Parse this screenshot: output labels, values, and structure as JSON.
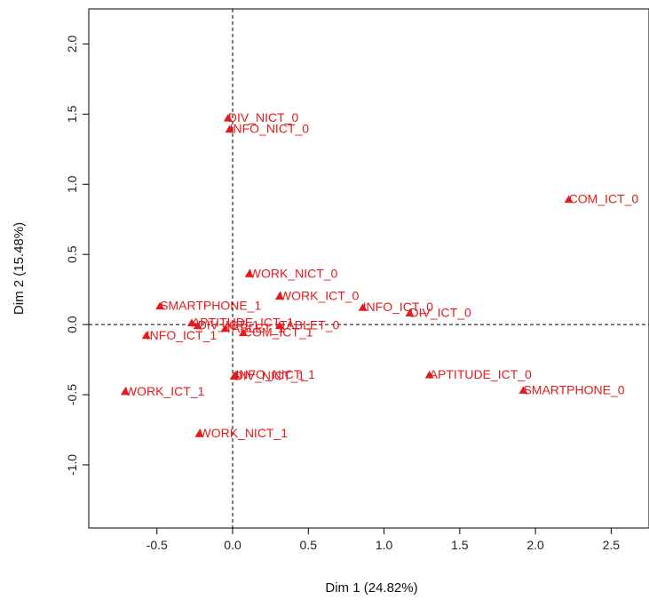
{
  "chart_data": {
    "type": "scatter",
    "xlabel": "Dim 1 (24.82%)",
    "ylabel": "Dim 2 (15.48%)",
    "xlim": [
      -0.95,
      2.75
    ],
    "ylim": [
      -1.45,
      2.25
    ],
    "x_ticks": [
      -0.5,
      0.0,
      0.5,
      1.0,
      1.5,
      2.0,
      2.5
    ],
    "y_ticks": [
      -1.0,
      -0.5,
      0.0,
      0.5,
      1.0,
      1.5,
      2.0
    ],
    "reference_lines": {
      "x": 0,
      "y": 0
    },
    "marker": "triangle",
    "color": "#e41a1c",
    "points": [
      {
        "label": "DIV_NICT_0",
        "x": -0.03,
        "y": 1.47
      },
      {
        "label": "INFO_NICT_0",
        "x": -0.02,
        "y": 1.39
      },
      {
        "label": "COM_ICT_0",
        "x": 2.22,
        "y": 0.89
      },
      {
        "label": "WORK_NICT_0",
        "x": 0.11,
        "y": 0.36
      },
      {
        "label": "WORK_ICT_0",
        "x": 0.31,
        "y": 0.2
      },
      {
        "label": "INFO_ICT_0",
        "x": 0.86,
        "y": 0.12
      },
      {
        "label": "DIV_ICT_0",
        "x": 1.17,
        "y": 0.08
      },
      {
        "label": "SMARTPHONE_1",
        "x": -0.48,
        "y": 0.13
      },
      {
        "label": "APTITUDE_ICT_1",
        "x": -0.27,
        "y": 0.01
      },
      {
        "label": "TABLET_0",
        "x": 0.31,
        "y": -0.01
      },
      {
        "label": "DIV_ICT_1",
        "x": -0.23,
        "y": -0.01
      },
      {
        "label": "TABLET_1",
        "x": -0.05,
        "y": -0.03
      },
      {
        "label": "COM_ICT_1",
        "x": 0.07,
        "y": -0.06
      },
      {
        "label": "INFO_ICT_1",
        "x": -0.57,
        "y": -0.08
      },
      {
        "label": "INFO_NICT_1",
        "x": 0.02,
        "y": -0.36
      },
      {
        "label": "DIV_NICT_1",
        "x": 0.01,
        "y": -0.37
      },
      {
        "label": "APTITUDE_ICT_0",
        "x": 1.3,
        "y": -0.36
      },
      {
        "label": "SMARTPHONE_0",
        "x": 1.92,
        "y": -0.47
      },
      {
        "label": "WORK_ICT_1",
        "x": -0.71,
        "y": -0.48
      },
      {
        "label": "WORK_NICT_1",
        "x": -0.22,
        "y": -0.78
      }
    ]
  }
}
